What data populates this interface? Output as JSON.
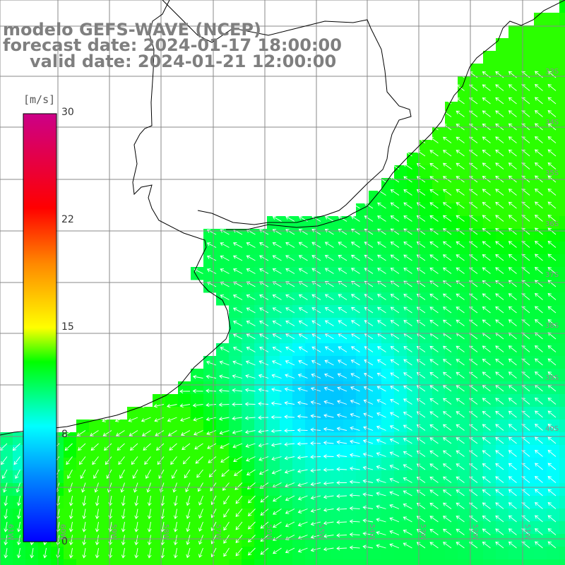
{
  "title": {
    "line1": "modelo GEFS-WAVE (NCEP)",
    "line2": "forecast date: 2024-01-17 18:00:00",
    "line3": "valid date: 2024-01-21 12:00:00"
  },
  "colorbar": {
    "unit": "[m/s]",
    "ticks": [
      "30",
      "22",
      "15",
      "8",
      "0"
    ],
    "colors": [
      "#0000ff",
      "#00aaff",
      "#00ffdd",
      "#00ff00",
      "#ffff00",
      "#ff8000",
      "#ff0000",
      "#cc0088"
    ]
  },
  "lat_labels": [
    "33S",
    "34S",
    "35S",
    "36S",
    "37S",
    "38S",
    "39S",
    "40S"
  ],
  "lon_labels": [
    "61W",
    "60W",
    "59W",
    "58W",
    "57W",
    "56W",
    "55W",
    "54W",
    "53W",
    "52W",
    "51W",
    "50W"
  ],
  "colors": {
    "land": "#ffffff",
    "coastline": "#000000",
    "grid": "#888888",
    "title": "#7f7f7f",
    "arrow": "#ffffff"
  }
}
